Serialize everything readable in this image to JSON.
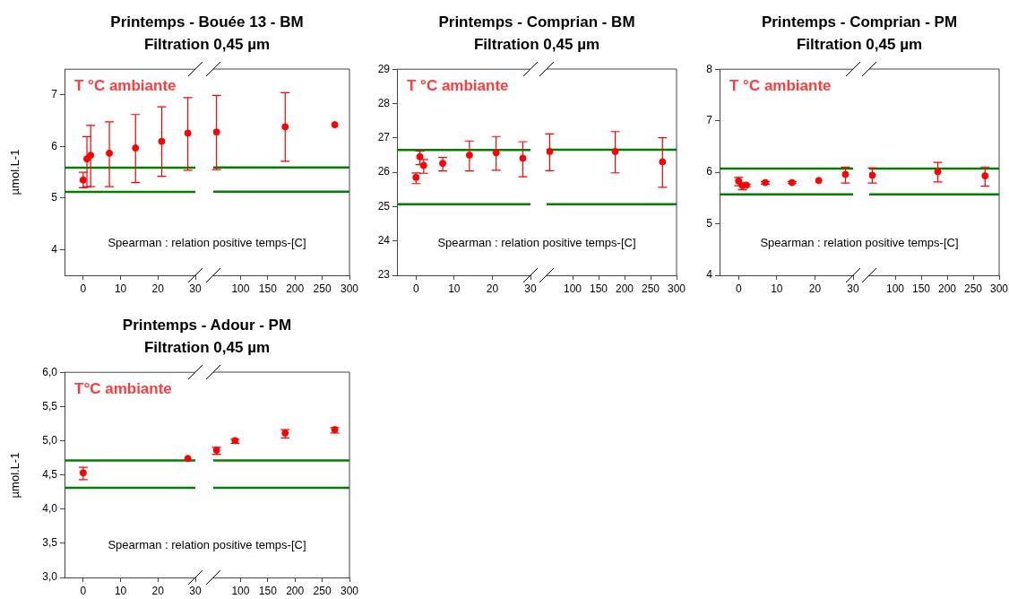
{
  "chart_data": [
    {
      "type": "scatter",
      "title": "Printemps - Bouée 13 - BM",
      "subtitle": "Filtration 0,45 µm",
      "ylabel": "µmol.L-1",
      "x": [
        0,
        1,
        2,
        7,
        14,
        21,
        28
      ],
      "values": [
        5.35,
        5.76,
        5.83,
        5.87,
        5.97,
        6.1,
        6.26
      ],
      "errors": [
        [
          5.2,
          5.5
        ],
        [
          5.22,
          6.19
        ],
        [
          5.22,
          6.41
        ],
        [
          5.22,
          6.48
        ],
        [
          5.3,
          6.62
        ],
        [
          5.42,
          6.77
        ],
        [
          5.54,
          6.95
        ]
      ],
      "color": "#ff0000",
      "marker": "circle",
      "xlim": [
        -5,
        30
      ],
      "xticks": [
        0,
        10,
        20,
        30
      ],
      "ylim": [
        3.5,
        7.5
      ],
      "yticks": [
        4,
        5,
        6,
        7
      ],
      "ref_lines": [
        {
          "axis": "y",
          "value": 5.59,
          "color": "#008000"
        },
        {
          "axis": "y",
          "value": 5.12,
          "color": "#008000"
        }
      ],
      "annotations": [
        "T °C ambiante",
        "Spearman : relation positive temps-[C]"
      ]
    },
    {
      "type": "scatter",
      "x": [
        56,
        182,
        273
      ],
      "values": [
        6.28,
        6.38,
        6.42
      ],
      "errors": [
        [
          5.55,
          6.99
        ],
        [
          5.71,
          7.04
        ],
        null
      ],
      "color": "#ff0000",
      "marker": "circle",
      "xlim": [
        50,
        300
      ],
      "xticks": [
        100,
        150,
        200,
        250,
        300
      ],
      "ylim": [
        3.5,
        7.5
      ],
      "tick_labels": "x",
      "ref_lines": [
        {
          "axis": "y",
          "value": 5.59,
          "color": "#008000"
        },
        {
          "axis": "y",
          "value": 5.12,
          "color": "#008000"
        }
      ]
    },
    {
      "type": "scatter",
      "title": "Printemps - Comprian - BM",
      "subtitle": "Filtration 0,45 µm",
      "x": [
        0,
        1,
        2,
        7,
        14,
        21,
        28
      ],
      "values": [
        25.85,
        26.45,
        26.2,
        26.26,
        26.5,
        26.57,
        26.41
      ],
      "errors": [
        [
          25.67,
          25.98
        ],
        [
          26.22,
          26.62
        ],
        [
          25.97,
          26.37
        ],
        [
          26.04,
          26.43
        ],
        [
          26.04,
          26.91
        ],
        [
          26.06,
          27.04
        ],
        [
          25.87,
          26.89
        ]
      ],
      "color": "#ff0000",
      "marker": "circle",
      "xlim": [
        -5,
        30
      ],
      "xticks": [
        0,
        10,
        20,
        30
      ],
      "ylim": [
        23,
        29
      ],
      "yticks": [
        23,
        24,
        25,
        26,
        27,
        28,
        29
      ],
      "ref_lines": [
        {
          "axis": "y",
          "value": 26.65,
          "color": "#008000"
        },
        {
          "axis": "y",
          "value": 25.07,
          "color": "#008000"
        }
      ],
      "annotations": [
        "T °C ambiante",
        "Spearman : relation positive temps-[C]"
      ]
    },
    {
      "type": "scatter",
      "x": [
        56,
        182,
        273
      ],
      "values": [
        26.6,
        26.6,
        26.3
      ],
      "errors": [
        [
          26.04,
          27.11
        ],
        [
          25.98,
          27.18
        ],
        [
          25.56,
          27.0
        ]
      ],
      "color": "#ff0000",
      "marker": "circle",
      "xlim": [
        50,
        300
      ],
      "xticks": [
        100,
        150,
        200,
        250,
        300
      ],
      "ylim": [
        23,
        29
      ],
      "tick_labels": "x",
      "ref_lines": [
        {
          "axis": "y",
          "value": 26.65,
          "color": "#008000"
        },
        {
          "axis": "y",
          "value": 25.07,
          "color": "#008000"
        }
      ]
    },
    {
      "type": "scatter",
      "title": "Printemps - Comprian - PM",
      "subtitle": "Filtration 0,45 µm",
      "x": [
        0,
        1,
        2,
        7,
        14,
        21,
        28
      ],
      "values": [
        5.83,
        5.74,
        5.75,
        5.8,
        5.8,
        5.84,
        5.96
      ],
      "errors": [
        [
          5.74,
          5.9
        ],
        [
          5.66,
          5.76
        ],
        [
          5.72,
          5.77
        ],
        [
          5.77,
          5.82
        ],
        [
          5.78,
          5.82
        ],
        null,
        [
          5.79,
          6.1
        ]
      ],
      "color": "#ff0000",
      "marker": "circle",
      "xlim": [
        -5,
        30
      ],
      "xticks": [
        0,
        10,
        20,
        30
      ],
      "ylim": [
        4,
        8
      ],
      "yticks": [
        4,
        5,
        6,
        7,
        8
      ],
      "ref_lines": [
        {
          "axis": "y",
          "value": 6.07,
          "color": "#008000"
        },
        {
          "axis": "y",
          "value": 5.57,
          "color": "#008000"
        }
      ],
      "annotations": [
        "T °C ambiante",
        "Spearman : relation positive temps-[C]"
      ]
    },
    {
      "type": "scatter",
      "x": [
        56,
        182,
        273
      ],
      "values": [
        5.94,
        6.01,
        5.93
      ],
      "errors": [
        [
          5.79,
          6.08
        ],
        [
          5.81,
          6.19
        ],
        [
          5.73,
          6.1
        ]
      ],
      "color": "#ff0000",
      "marker": "circle",
      "xlim": [
        50,
        300
      ],
      "xticks": [
        100,
        150,
        200,
        250,
        300
      ],
      "ylim": [
        4,
        8
      ],
      "tick_labels": "x",
      "ref_lines": [
        {
          "axis": "y",
          "value": 6.07,
          "color": "#008000"
        },
        {
          "axis": "y",
          "value": 5.57,
          "color": "#008000"
        }
      ]
    },
    {
      "type": "scatter",
      "title": "Printemps - Adour - PM",
      "subtitle": "Filtration 0,45 µm",
      "ylabel": "µmol.L-1",
      "x": [
        0,
        28
      ],
      "values": [
        4.53,
        4.74
      ],
      "errors": [
        [
          4.43,
          4.61
        ],
        null
      ],
      "color": "#ff0000",
      "marker": "circle",
      "xlim": [
        -5,
        30
      ],
      "xticks": [
        0,
        10,
        20,
        30
      ],
      "ylim": [
        3,
        6
      ],
      "yticks": [
        {
          "value": 3,
          "label": "3,0"
        },
        {
          "value": 3.5,
          "label": "3,5"
        },
        {
          "value": 4,
          "label": "4,0"
        },
        {
          "value": 4.5,
          "label": "4,5"
        },
        {
          "value": 5,
          "label": "5,0"
        },
        {
          "value": 5.5,
          "label": "5,5"
        },
        {
          "value": 6,
          "label": "6,0"
        }
      ],
      "ref_lines": [
        {
          "axis": "y",
          "value": 4.71,
          "color": "#008000"
        },
        {
          "axis": "y",
          "value": 4.31,
          "color": "#008000"
        }
      ],
      "annotations": [
        "T°C ambiante",
        "Spearman : relation positive temps-[C]"
      ]
    },
    {
      "type": "scatter",
      "x": [
        56,
        90,
        182,
        273
      ],
      "values": [
        4.86,
        5.0,
        5.11,
        5.16
      ],
      "errors": [
        [
          4.8,
          4.9
        ],
        [
          4.96,
          5.02
        ],
        [
          5.04,
          5.16
        ],
        [
          5.11,
          5.19
        ]
      ],
      "color": "#ff0000",
      "marker": "circle",
      "xlim": [
        50,
        300
      ],
      "xticks": [
        100,
        150,
        200,
        250,
        300
      ],
      "ylim": [
        3,
        6
      ],
      "tick_labels": "x",
      "ref_lines": [
        {
          "axis": "y",
          "value": 4.71,
          "color": "#008000"
        },
        {
          "axis": "y",
          "value": 4.31,
          "color": "#008000"
        }
      ]
    }
  ]
}
